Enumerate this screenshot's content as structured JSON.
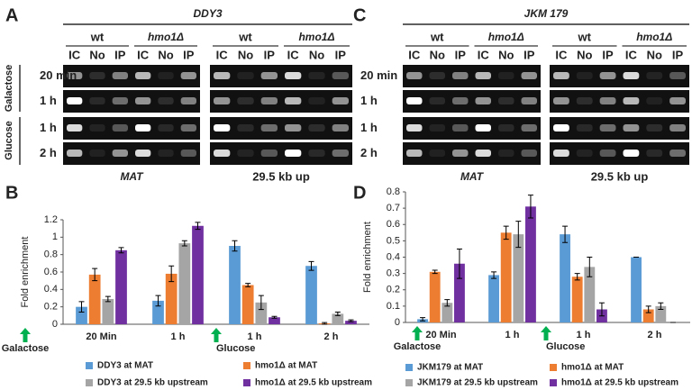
{
  "gels": [
    {
      "letter": "A",
      "title": "DDY3",
      "groups": [
        "wt",
        "hmo1Δ",
        "wt",
        "hmo1Δ"
      ],
      "lanes": [
        "IC",
        "No",
        "IP",
        "IC",
        "No",
        "IP",
        "IC",
        "No",
        "IP",
        "IC",
        "No",
        "IP"
      ],
      "rows": [
        "20 min",
        "1 h",
        "1 h",
        "2 h"
      ],
      "conditions": [
        "Galactose",
        "Glucose"
      ],
      "loci": [
        "MAT",
        "29.5 kb up"
      ]
    },
    {
      "letter": "C",
      "title": "JKM 179",
      "groups": [
        "wt",
        "hmo1Δ",
        "wt",
        "hmo1Δ"
      ],
      "lanes": [
        "IC",
        "No",
        "IP",
        "IC",
        "No",
        "IP",
        "IC",
        "No",
        "IP",
        "IC",
        "No",
        "IP"
      ],
      "rows": [
        "20 min",
        "1 h",
        "1 h",
        "2 h"
      ],
      "loci": [
        "MAT",
        "29.5 kb up"
      ]
    }
  ],
  "chart_data": [
    {
      "type": "bar",
      "letter": "B",
      "y_label": "Fold enrichment",
      "categories": [
        "20 Min",
        "1 h",
        "1 h",
        "2 h"
      ],
      "annotations": [
        "Galactose",
        "Glucose"
      ],
      "ylim": [
        0,
        1.2
      ],
      "yticks": [
        0,
        0.2,
        0.4,
        0.6,
        0.8,
        1,
        1.2
      ],
      "series": [
        {
          "name": "DDY3 at MAT",
          "color": "#5b9bd5",
          "values": [
            0.2,
            0.27,
            0.9,
            0.67
          ],
          "errors": [
            0.06,
            0.06,
            0.06,
            0.05
          ]
        },
        {
          "name": "hmo1Δ at MAT",
          "color": "#ed7d31",
          "values": [
            0.57,
            0.58,
            0.45,
            0.01
          ],
          "errors": [
            0.07,
            0.09,
            0.02,
            0.01
          ]
        },
        {
          "name": "DDY3 at 29.5 kb upstream",
          "color": "#a5a5a5",
          "values": [
            0.29,
            0.93,
            0.25,
            0.12
          ],
          "errors": [
            0.03,
            0.03,
            0.08,
            0.02
          ]
        },
        {
          "name": "hmo1Δ at 29.5 kb upstream",
          "color": "#7030a0",
          "values": [
            0.85,
            1.13,
            0.08,
            0.04
          ],
          "errors": [
            0.03,
            0.04,
            0.01,
            0.01
          ]
        }
      ]
    },
    {
      "type": "bar",
      "letter": "D",
      "y_label": "Fold enrichment",
      "categories": [
        "20 Min",
        "1 h",
        "1 h",
        "2 h"
      ],
      "annotations": [
        "Galactose",
        "Glucose"
      ],
      "ylim": [
        0,
        0.8
      ],
      "yticks": [
        0,
        0.1,
        0.2,
        0.3,
        0.4,
        0.5,
        0.6,
        0.7,
        0.8
      ],
      "series": [
        {
          "name": "JKM179 at MAT",
          "color": "#5b9bd5",
          "values": [
            0.02,
            0.29,
            0.54,
            0.4
          ],
          "errors": [
            0.01,
            0.02,
            0.05,
            0
          ]
        },
        {
          "name": "hmo1Δ at MAT",
          "color": "#ed7d31",
          "values": [
            0.31,
            0.55,
            0.28,
            0.08
          ],
          "errors": [
            0.01,
            0.04,
            0.02,
            0.02
          ]
        },
        {
          "name": "JKM179 at 29.5 kb upstream",
          "color": "#a5a5a5",
          "values": [
            0.12,
            0.54,
            0.34,
            0.1
          ],
          "errors": [
            0.02,
            0.08,
            0.06,
            0.02
          ]
        },
        {
          "name": "hmo1Δ at 29.5 kb upstream",
          "color": "#7030a0",
          "values": [
            0.36,
            0.71,
            0.08,
            0
          ],
          "errors": [
            0.09,
            0.07,
            0.04,
            0
          ]
        }
      ]
    }
  ]
}
